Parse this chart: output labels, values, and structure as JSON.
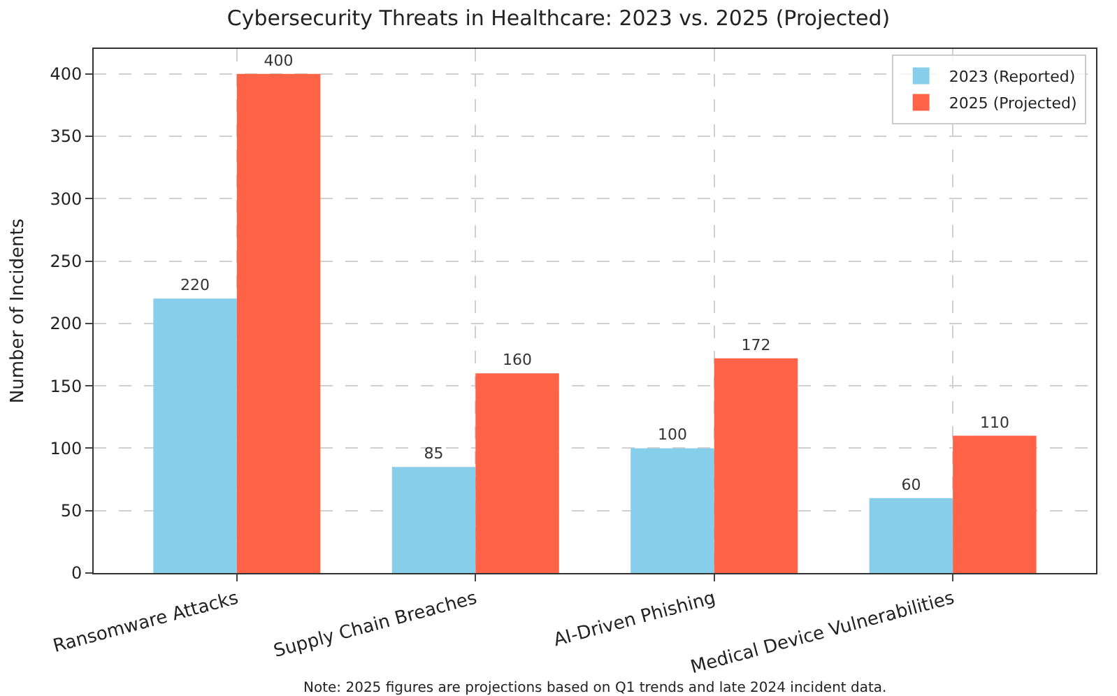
{
  "chart_data": {
    "type": "bar",
    "title": "Cybersecurity Threats in Healthcare: 2023 vs. 2025 (Projected)",
    "ylabel": "Number of Incidents",
    "categories": [
      "Ransomware Attacks",
      "Supply Chain Breaches",
      "AI-Driven Phishing",
      "Medical Device Vulnerabilities"
    ],
    "series": [
      {
        "name": "2023 (Reported)",
        "color": "#87ceeb",
        "values": [
          220,
          85,
          100,
          60
        ]
      },
      {
        "name": "2025 (Projected)",
        "color": "#ff6347",
        "values": [
          400,
          160,
          172,
          110
        ]
      }
    ],
    "ylim": [
      0,
      420
    ],
    "yticks": [
      0,
      50,
      100,
      150,
      200,
      250,
      300,
      350,
      400
    ],
    "grid": true,
    "legend": "top right",
    "data_labels": true,
    "annotations": [
      "Note: 2025 figures are projections based on Q1 trends and late 2024 incident data."
    ]
  }
}
